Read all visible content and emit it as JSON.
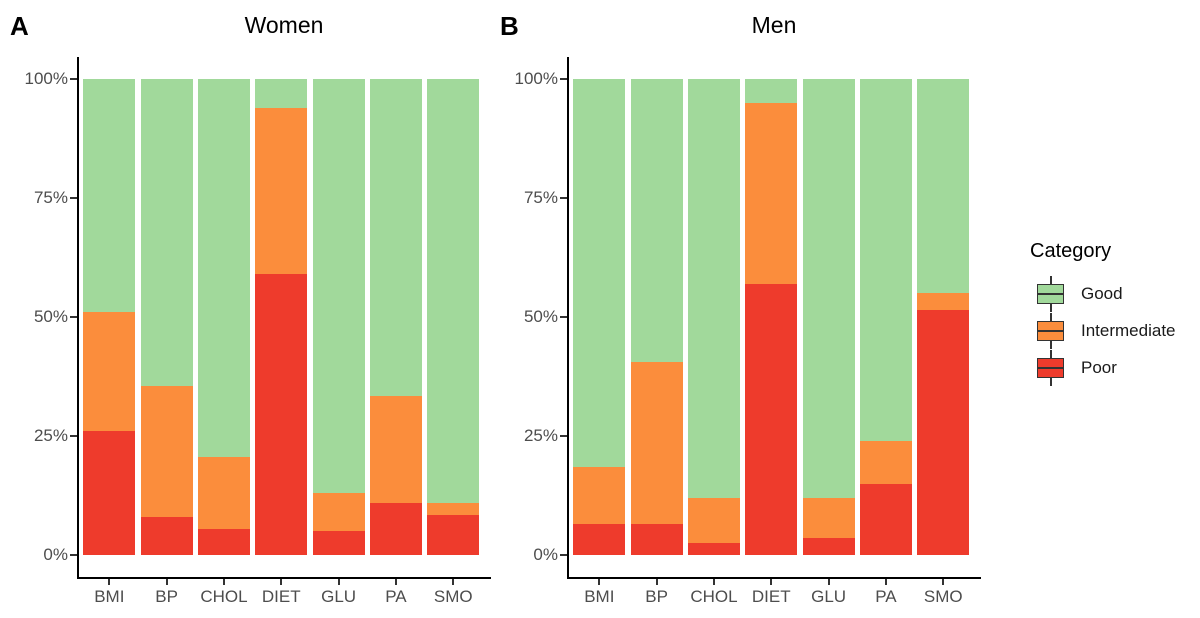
{
  "figure": {
    "background": "#ffffff",
    "axis_color": "#000000",
    "axis_text_color": "#4d4d4d",
    "legend": {
      "title": "Category",
      "items": [
        {
          "label": "Good",
          "color": "#A1D99B"
        },
        {
          "label": "Intermediate",
          "color": "#FB8D3C"
        },
        {
          "label": "Poor",
          "color": "#EE3B2C"
        }
      ]
    }
  },
  "chart_data": [
    {
      "type": "bar",
      "stacked": true,
      "percent": true,
      "tag": "A",
      "title": "Women",
      "xlabel": "",
      "ylabel": "",
      "ylim": [
        0,
        100
      ],
      "grid": false,
      "legend_position": "right",
      "categories": [
        "BMI",
        "BP",
        "CHOL",
        "DIET",
        "GLU",
        "PA",
        "SMO"
      ],
      "ytick_values": [
        0,
        25,
        50,
        75,
        100
      ],
      "ytick_labels": [
        "0%",
        "25%",
        "50%",
        "75%",
        "100%"
      ],
      "series": [
        {
          "name": "Poor",
          "color": "#EE3B2C",
          "values": [
            26,
            8,
            5.5,
            59,
            5,
            11,
            8.5
          ]
        },
        {
          "name": "Intermediate",
          "color": "#FB8D3C",
          "values": [
            25,
            27.5,
            15,
            35,
            8,
            22.5,
            2.5
          ]
        },
        {
          "name": "Good",
          "color": "#A1D99B",
          "values": [
            49,
            64.5,
            79.5,
            6,
            87,
            66.5,
            89
          ]
        }
      ]
    },
    {
      "type": "bar",
      "stacked": true,
      "percent": true,
      "tag": "B",
      "title": "Men",
      "xlabel": "",
      "ylabel": "",
      "ylim": [
        0,
        100
      ],
      "grid": false,
      "legend_position": "right",
      "categories": [
        "BMI",
        "BP",
        "CHOL",
        "DIET",
        "GLU",
        "PA",
        "SMO"
      ],
      "ytick_values": [
        0,
        25,
        50,
        75,
        100
      ],
      "ytick_labels": [
        "0%",
        "25%",
        "50%",
        "75%",
        "100%"
      ],
      "series": [
        {
          "name": "Poor",
          "color": "#EE3B2C",
          "values": [
            6.5,
            6.5,
            2.5,
            57,
            3.5,
            15,
            51.5
          ]
        },
        {
          "name": "Intermediate",
          "color": "#FB8D3C",
          "values": [
            12,
            34,
            9.5,
            38,
            8.5,
            9,
            3.5
          ]
        },
        {
          "name": "Good",
          "color": "#A1D99B",
          "values": [
            81.5,
            59.5,
            88,
            5,
            88,
            76,
            45
          ]
        }
      ]
    }
  ]
}
